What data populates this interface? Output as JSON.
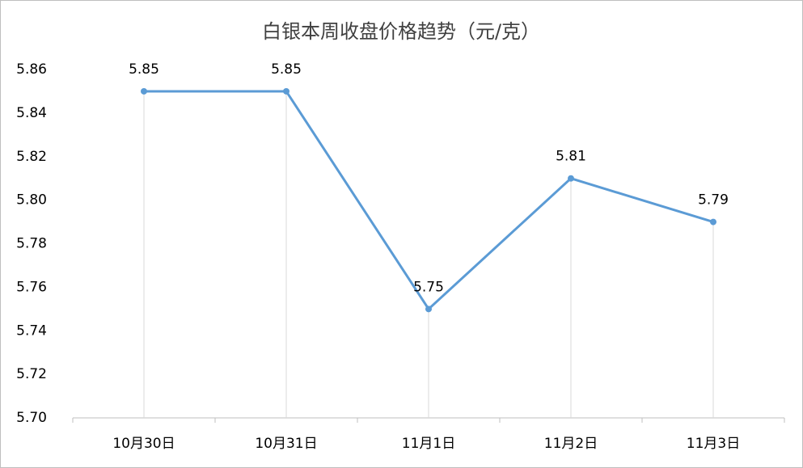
{
  "chart_data": {
    "type": "line",
    "title": "白银本周收盘价格趋势（元/克）",
    "categories": [
      "10月30日",
      "10月31日",
      "11月1日",
      "11月2日",
      "11月3日"
    ],
    "values": [
      5.85,
      5.85,
      5.75,
      5.81,
      5.79
    ],
    "color": "#5b9bd5",
    "ylim": [
      5.7,
      5.86
    ],
    "yticks": [
      {
        "value": 5.7,
        "label": "5.70"
      },
      5.72,
      5.74,
      5.76,
      5.78,
      {
        "value": 5.8,
        "label": "5.80"
      },
      5.82,
      5.84,
      5.86
    ],
    "grid": false,
    "drop_lines": true,
    "data_labels": true
  }
}
